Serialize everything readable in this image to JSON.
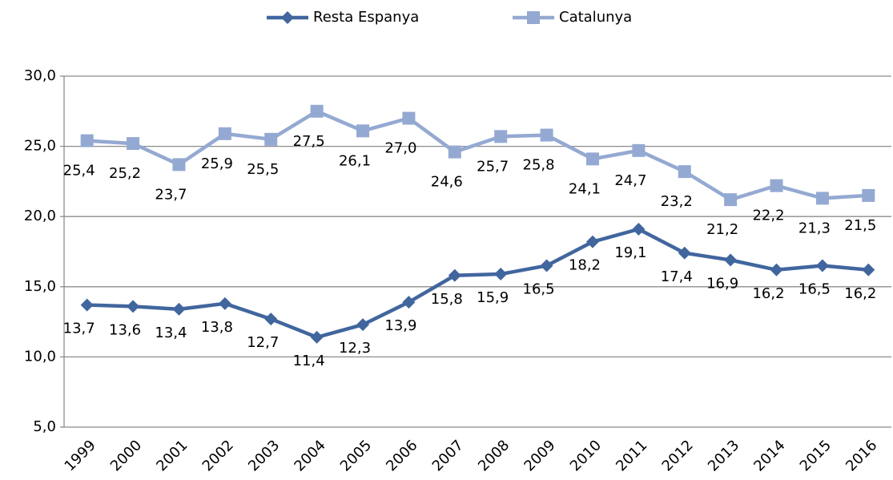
{
  "chart_data": {
    "type": "line",
    "categories": [
      "1999",
      "2000",
      "2001",
      "2002",
      "2003",
      "2004",
      "2005",
      "2006",
      "2007",
      "2008",
      "2009",
      "2010",
      "2011",
      "2012",
      "2013",
      "2014",
      "2015",
      "2016"
    ],
    "series": [
      {
        "name": "Resta Espanya",
        "color": "#41669e",
        "marker": "diamond",
        "values": [
          13.7,
          13.6,
          13.4,
          13.8,
          12.7,
          11.4,
          12.3,
          13.9,
          15.8,
          15.9,
          16.5,
          18.2,
          19.1,
          17.4,
          16.9,
          16.2,
          16.5,
          16.2
        ],
        "value_labels": [
          "13,7",
          "13,6",
          "13,4",
          "13,8",
          "12,7",
          "11,4",
          "12,3",
          "13,9",
          "15,8",
          "15,9",
          "16,5",
          "18,2",
          "19,1",
          "17,4",
          "16,9",
          "16,2",
          "16,5",
          "16,2"
        ]
      },
      {
        "name": "Catalunya",
        "color": "#94a9d2",
        "marker": "square",
        "values": [
          25.4,
          25.2,
          23.7,
          25.9,
          25.5,
          27.5,
          26.1,
          27.0,
          24.6,
          25.7,
          25.8,
          24.1,
          24.7,
          23.2,
          21.2,
          22.2,
          21.3,
          21.5
        ],
        "value_labels": [
          "25,4",
          "25,2",
          "23,7",
          "25,9",
          "25,5",
          "27,5",
          "26,1",
          "27,0",
          "24,6",
          "25,7",
          "25,8",
          "24,1",
          "24,7",
          "23,2",
          "21,2",
          "22,2",
          "21,3",
          "21,5"
        ]
      }
    ],
    "ylim": [
      5,
      30
    ],
    "yticks": [
      {
        "value": 5,
        "label": "5,0"
      },
      {
        "value": 10,
        "label": "10,0"
      },
      {
        "value": 15,
        "label": "15,0"
      },
      {
        "value": 20,
        "label": "20,0"
      },
      {
        "value": 25,
        "label": "25,0"
      },
      {
        "value": 30,
        "label": "30,0"
      }
    ],
    "grid": true,
    "legend": "top"
  }
}
